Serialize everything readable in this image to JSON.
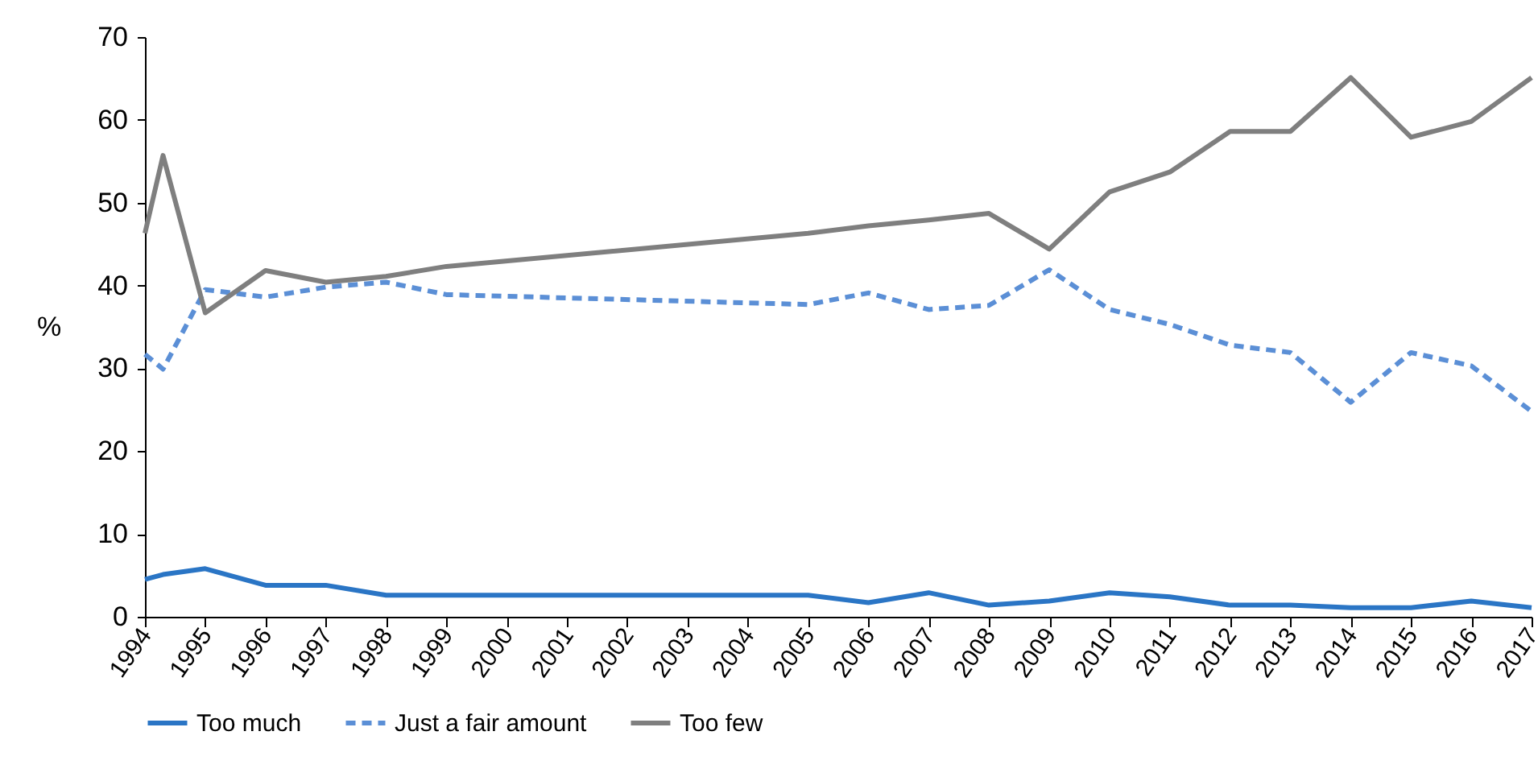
{
  "chart_data": {
    "type": "line",
    "ylabel": "%",
    "x": [
      1994,
      1994.3,
      1995,
      1996,
      1997,
      1998,
      1999,
      2005,
      2006,
      2007,
      2008,
      2009,
      2010,
      2011,
      2012,
      2013,
      2014,
      2015,
      2016,
      2017
    ],
    "series": [
      {
        "name": "Too much",
        "color": "#2a75c5",
        "line_style": "solid",
        "values": [
          4.5,
          5.1,
          5.8,
          3.8,
          3.8,
          2.6,
          2.6,
          2.6,
          1.7,
          2.9,
          1.4,
          1.9,
          2.9,
          2.4,
          1.4,
          1.4,
          1.1,
          1.1,
          1.9,
          1.1
        ]
      },
      {
        "name": "Just a fair amount",
        "color": "#5b8fd6",
        "line_style": "dashed",
        "values": [
          31.7,
          29.9,
          39.5,
          38.6,
          39.8,
          40.4,
          38.9,
          37.7,
          39.1,
          37.1,
          37.6,
          41.9,
          37.1,
          35.3,
          32.8,
          31.9,
          25.9,
          31.9,
          30.3,
          24.8
        ]
      },
      {
        "name": "Too few",
        "color": "#7f7f7f",
        "line_style": "solid",
        "values": [
          46.3,
          55.7,
          36.7,
          41.8,
          40.4,
          41.1,
          42.3,
          46.3,
          47.2,
          47.9,
          48.7,
          44.4,
          51.3,
          53.7,
          58.6,
          58.6,
          65.1,
          57.9,
          59.8,
          65.1
        ]
      }
    ],
    "xlim": [
      1994,
      2017
    ],
    "xticks": [
      1994,
      1995,
      1996,
      1997,
      1998,
      1999,
      2000,
      2001,
      2002,
      2003,
      2004,
      2005,
      2006,
      2007,
      2008,
      2009,
      2010,
      2011,
      2012,
      2013,
      2014,
      2015,
      2016,
      2017
    ],
    "ylim": [
      0,
      70
    ],
    "yticks": [
      0,
      10,
      20,
      30,
      40,
      50,
      60,
      70
    ],
    "grid": false,
    "legend": "bottom"
  }
}
